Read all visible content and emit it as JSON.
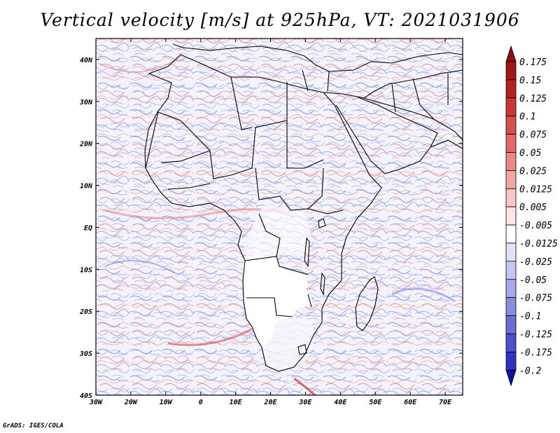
{
  "title": "Vertical velocity [m/s] at 925hPa, VT: 2021031906",
  "footer": "GrADS: IGES/COLA",
  "map": {
    "type": "filled-contour-map",
    "variable": "Vertical velocity",
    "units": "m/s",
    "level": "925hPa",
    "valid_time": "2021031906",
    "lon_range": [
      -30,
      75
    ],
    "lat_range": [
      -40,
      45
    ],
    "region": "Africa and Middle East",
    "masked_region_note": "blank (white) over high terrain of southern Africa"
  },
  "axes": {
    "x_ticks": [
      {
        "label": "30W",
        "lon": -30
      },
      {
        "label": "20W",
        "lon": -20
      },
      {
        "label": "10W",
        "lon": -10
      },
      {
        "label": "0",
        "lon": 0
      },
      {
        "label": "10E",
        "lon": 10
      },
      {
        "label": "20E",
        "lon": 20
      },
      {
        "label": "30E",
        "lon": 30
      },
      {
        "label": "40E",
        "lon": 40
      },
      {
        "label": "50E",
        "lon": 50
      },
      {
        "label": "60E",
        "lon": 60
      },
      {
        "label": "70E",
        "lon": 70
      }
    ],
    "y_ticks": [
      {
        "label": "40N",
        "lat": 40
      },
      {
        "label": "30N",
        "lat": 30
      },
      {
        "label": "20N",
        "lat": 20
      },
      {
        "label": "10N",
        "lat": 10
      },
      {
        "label": "EQ",
        "lat": 0
      },
      {
        "label": "10S",
        "lat": -10
      },
      {
        "label": "20S",
        "lat": -20
      },
      {
        "label": "30S",
        "lat": -30
      },
      {
        "label": "40S",
        "lat": -40
      }
    ]
  },
  "colorbar": {
    "levels": [
      {
        "label": "0.175",
        "color": "#a01818"
      },
      {
        "label": "0.15",
        "color": "#b52222"
      },
      {
        "label": "0.125",
        "color": "#c93636"
      },
      {
        "label": "0.1",
        "color": "#d84e4e"
      },
      {
        "label": "0.075",
        "color": "#e46a6a"
      },
      {
        "label": "0.05",
        "color": "#ec8787"
      },
      {
        "label": "0.025",
        "color": "#f2a6a6"
      },
      {
        "label": "0.0125",
        "color": "#f8c6c6"
      },
      {
        "label": "0.005",
        "color": "#fde4e4"
      },
      {
        "label": "-0.005",
        "color": "#ffffff"
      },
      {
        "label": "-0.0125",
        "color": "#e2e2fa"
      },
      {
        "label": "-0.025",
        "color": "#c6c6f2"
      },
      {
        "label": "-0.05",
        "color": "#a8a8ea"
      },
      {
        "label": "-0.075",
        "color": "#8b8be0"
      },
      {
        "label": "-0.1",
        "color": "#6c6cd6"
      },
      {
        "label": "-0.125",
        "color": "#4f4fcc"
      },
      {
        "label": "-0.175",
        "color": "#3232be"
      },
      {
        "label": "-0.2",
        "color": "#1e1eaa"
      }
    ],
    "top_arrow_color": "#8c1010",
    "bottom_arrow_color": "#1010a0"
  },
  "colors": {
    "field_red": "#e77f7f",
    "field_blue": "#8a8ae8",
    "land_mask": "#ffffff"
  }
}
